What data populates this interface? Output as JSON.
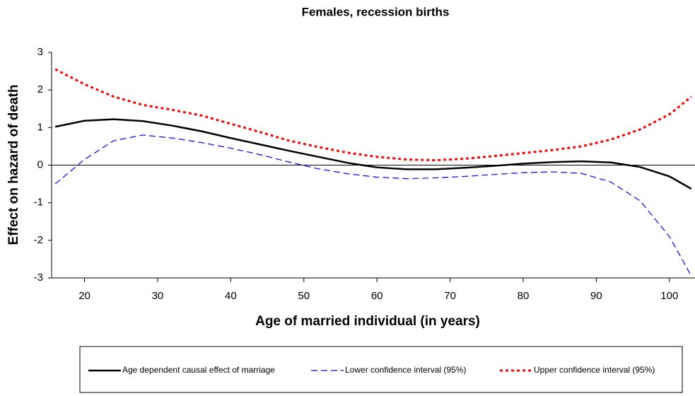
{
  "chart_data": {
    "type": "line",
    "title": "Females, recession births",
    "x_label": "Age of married individual (in years)",
    "y_label": "Effect on hazard of death",
    "x": [
      16,
      20,
      24,
      28,
      32,
      36,
      40,
      44,
      48,
      52,
      56,
      60,
      64,
      68,
      72,
      76,
      80,
      84,
      88,
      92,
      96,
      100,
      103
    ],
    "series": [
      {
        "name": "Age dependent causal effect of marriage",
        "color": "#000000",
        "dash": "solid",
        "values": [
          1.02,
          1.18,
          1.22,
          1.17,
          1.05,
          0.9,
          0.72,
          0.55,
          0.38,
          0.22,
          0.06,
          -0.06,
          -0.11,
          -0.11,
          -0.07,
          -0.02,
          0.04,
          0.08,
          0.1,
          0.07,
          -0.05,
          -0.3,
          -0.63
        ]
      },
      {
        "name": "Lower confidence interval (95%)",
        "color": "#0000ff",
        "dash": "dashed",
        "values": [
          -0.5,
          0.15,
          0.65,
          0.8,
          0.72,
          0.6,
          0.45,
          0.28,
          0.08,
          -0.1,
          -0.23,
          -0.32,
          -0.36,
          -0.34,
          -0.3,
          -0.25,
          -0.2,
          -0.18,
          -0.22,
          -0.45,
          -0.95,
          -1.9,
          -2.95
        ]
      },
      {
        "name": "Upper confidence interval (95%)",
        "color": "#ff0000",
        "dash": "dotted",
        "values": [
          2.55,
          2.15,
          1.82,
          1.6,
          1.47,
          1.32,
          1.1,
          0.88,
          0.65,
          0.48,
          0.33,
          0.22,
          0.15,
          0.13,
          0.17,
          0.24,
          0.32,
          0.4,
          0.5,
          0.68,
          0.95,
          1.35,
          1.82
        ]
      }
    ],
    "xlim": [
      15.5,
      103.5
    ],
    "xticks": [
      20,
      30,
      40,
      50,
      60,
      70,
      80,
      90,
      100
    ],
    "ylim": [
      -3,
      3
    ],
    "yticks": [
      -3,
      -2,
      -1,
      0,
      1,
      2,
      3
    ],
    "zero_line": true,
    "legend": "bottom"
  }
}
